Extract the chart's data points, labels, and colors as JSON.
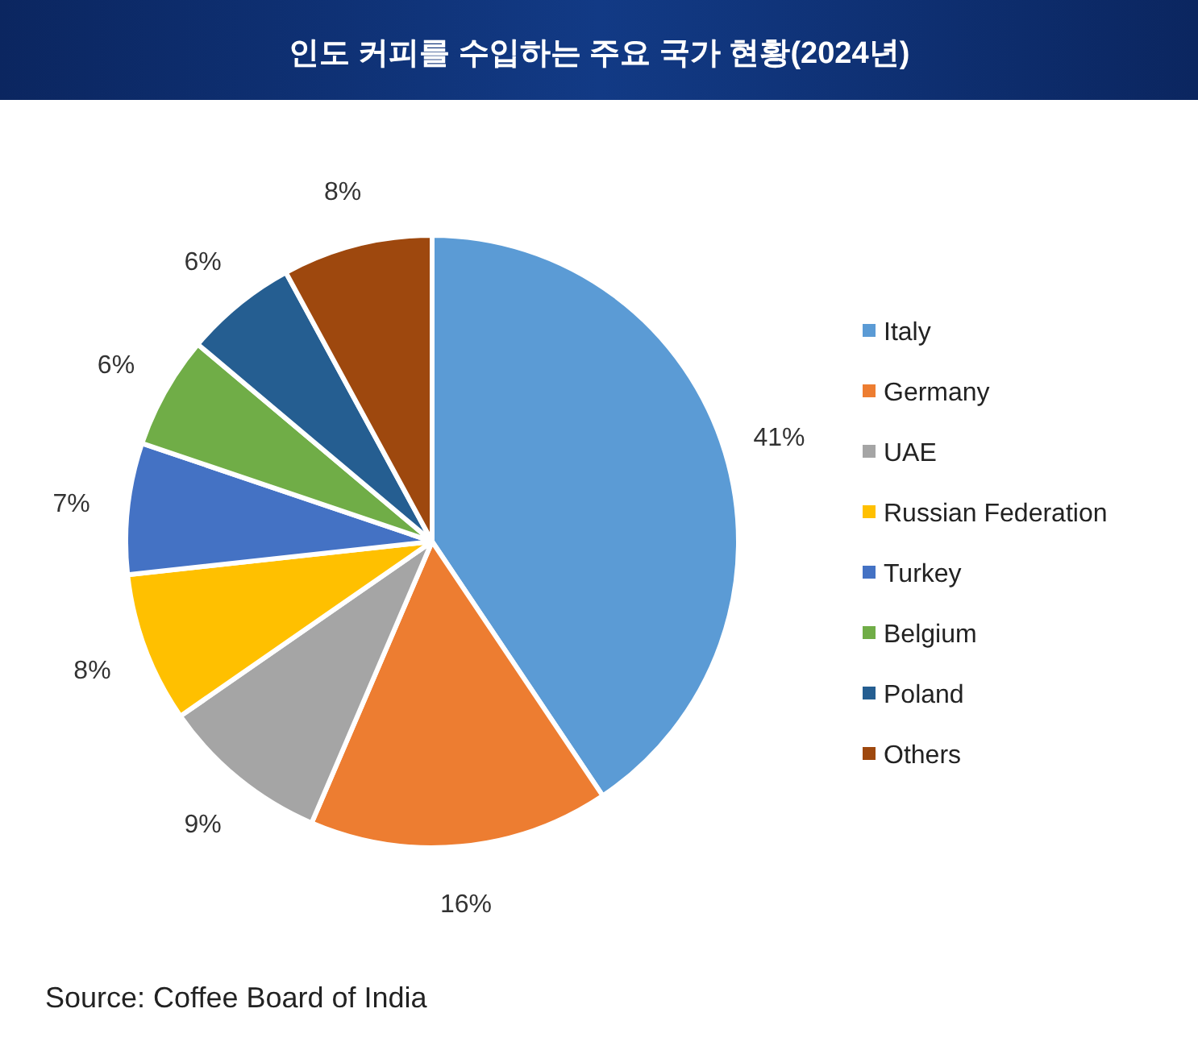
{
  "chart_data": {
    "type": "pie",
    "title": "인도 커피를 수입하는 주요 국가 현황(2024년)",
    "categories": [
      "Italy",
      "Germany",
      "UAE",
      "Russian Federation",
      "Turkey",
      "Belgium",
      "Poland",
      "Others"
    ],
    "values": [
      41,
      16,
      9,
      8,
      7,
      6,
      6,
      8
    ],
    "colors": [
      "#5b9bd5",
      "#ed7d31",
      "#a5a5a5",
      "#ffc000",
      "#4472c4",
      "#70ad47",
      "#255e91",
      "#9e480e"
    ],
    "value_labels": [
      "41%",
      "16%",
      "9%",
      "8%",
      "7%",
      "6%",
      "6%",
      "8%"
    ],
    "legend": "right",
    "annotations": [
      "Source: Coffee Board of India"
    ]
  }
}
